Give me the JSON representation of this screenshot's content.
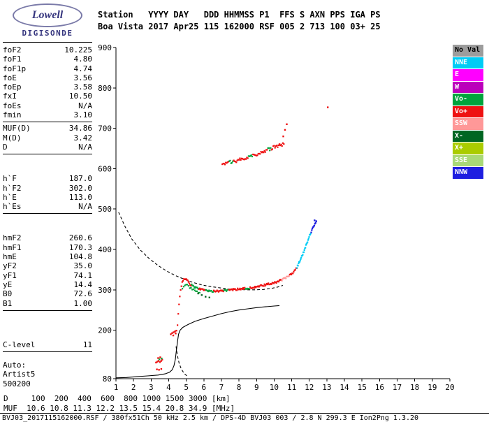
{
  "logo": {
    "line1": "Lowell",
    "line2": "DIGISONDE"
  },
  "header": {
    "row1": "Station   YYYY DAY   DDD HHMMSS P1  FFS S AXN PPS IGA PS",
    "row2": "Boa Vista 2017 Apr25 115 162000 RSF 005 2 713 100 03+ 25"
  },
  "parameters": {
    "groups": [
      {
        "rows": [
          {
            "label": "foF2",
            "value": "10.225"
          },
          {
            "label": "foF1",
            "value": "4.80"
          },
          {
            "label": "foF1p",
            "value": "4.74"
          },
          {
            "label": "foE",
            "value": "3.56"
          },
          {
            "label": "foEp",
            "value": "3.58"
          },
          {
            "label": "fxI",
            "value": "10.50"
          },
          {
            "label": "foEs",
            "value": "N/A"
          },
          {
            "label": "fmin",
            "value": "3.10"
          }
        ]
      },
      {
        "rows": [
          {
            "label": "MUF(D)",
            "value": "34.86"
          },
          {
            "label": "M(D)",
            "value": "3.42"
          },
          {
            "label": "D",
            "value": "N/A"
          }
        ]
      },
      {
        "rows": [
          {
            "label": "h`F",
            "value": "187.0"
          },
          {
            "label": "h`F2",
            "value": "302.0"
          },
          {
            "label": "h`E",
            "value": "113.0"
          },
          {
            "label": "h`Es",
            "value": "N/A"
          }
        ]
      },
      {
        "rows": [
          {
            "label": "hmF2",
            "value": "260.6"
          },
          {
            "label": "hmF1",
            "value": "170.3"
          },
          {
            "label": "hmE",
            "value": "104.8"
          },
          {
            "label": "yF2",
            "value": "35.0"
          },
          {
            "label": "yF1",
            "value": "74.1"
          },
          {
            "label": "yE",
            "value": "14.4"
          },
          {
            "label": "B0",
            "value": "72.6"
          },
          {
            "label": "B1",
            "value": "1.00"
          }
        ]
      },
      {
        "rows": [
          {
            "label": "C-level",
            "value": "11"
          }
        ]
      },
      {
        "rows": [
          {
            "label": "Auto:",
            "value": ""
          },
          {
            "label": "Artist5",
            "value": ""
          },
          {
            "label": "500200",
            "value": ""
          }
        ]
      }
    ]
  },
  "legend": {
    "items": [
      {
        "label": "No Val",
        "color_key": "NoVal",
        "text_color": "#000000"
      },
      {
        "label": "NNE",
        "color_key": "NNE",
        "text_color": "#ffffff"
      },
      {
        "label": "E",
        "color_key": "E",
        "text_color": "#ffffff"
      },
      {
        "label": "W",
        "color_key": "W",
        "text_color": "#ffffff"
      },
      {
        "label": "Vo-",
        "color_key": "Vo-",
        "text_color": "#ffffff"
      },
      {
        "label": "Vo+",
        "color_key": "Vo+",
        "text_color": "#ffffff"
      },
      {
        "label": "SSW",
        "color_key": "SSW",
        "text_color": "#ffffff"
      },
      {
        "label": "X-",
        "color_key": "X-",
        "text_color": "#ffffff"
      },
      {
        "label": "X+",
        "color_key": "X+",
        "text_color": "#ffffff"
      },
      {
        "label": "SSE",
        "color_key": "SSE",
        "text_color": "#ffffff"
      },
      {
        "label": "NNW",
        "color_key": "NNW",
        "text_color": "#ffffff"
      }
    ]
  },
  "chart_data": {
    "type": "scatter",
    "title": "",
    "xlim": [
      1,
      20
    ],
    "ylim": [
      80,
      900
    ],
    "x_ticks": [
      1,
      2,
      3,
      4,
      5,
      6,
      7,
      8,
      9,
      10,
      11,
      12,
      13,
      14,
      15,
      16,
      17,
      18,
      19,
      20
    ],
    "y_ticks": [
      80,
      200,
      300,
      400,
      500,
      600,
      700,
      800,
      900
    ],
    "grid": false,
    "legend_position": "right",
    "colors": {
      "NoVal": "#9c9c9c",
      "NNE": "#00ccf5",
      "E": "#ff00ff",
      "W": "#bb00bb",
      "Vo-": "#00a33c",
      "Vo+": "#ee1111",
      "SSW": "#ff9898",
      "X-": "#006622",
      "X+": "#aacc00",
      "SSE": "#a9d977",
      "NNW": "#1e1ee0"
    },
    "traces": [
      {
        "name": "F-trace-main",
        "step": 0.045,
        "jitter": 2.5,
        "control": [
          [
            4.5,
            212
          ],
          [
            4.55,
            242
          ],
          [
            4.6,
            268
          ],
          [
            4.65,
            290
          ],
          [
            4.7,
            305
          ],
          [
            4.75,
            315
          ],
          [
            4.8,
            322
          ],
          [
            4.9,
            327
          ],
          [
            5.0,
            325
          ],
          [
            5.1,
            320
          ],
          [
            5.25,
            313
          ],
          [
            5.45,
            307
          ],
          [
            5.7,
            302
          ],
          [
            6.0,
            299
          ],
          [
            6.4,
            297
          ],
          [
            6.8,
            297
          ],
          [
            7.2,
            298
          ],
          [
            7.6,
            300
          ],
          [
            8.0,
            302
          ],
          [
            8.4,
            304
          ],
          [
            8.8,
            306
          ],
          [
            9.2,
            309
          ],
          [
            9.6,
            313
          ],
          [
            10.0,
            317
          ],
          [
            10.3,
            322
          ],
          [
            10.6,
            328
          ],
          [
            10.9,
            336
          ],
          [
            11.1,
            344
          ],
          [
            11.3,
            354
          ]
        ],
        "segments": [
          {
            "from": 4.5,
            "to": 5.3,
            "color": "Vo+"
          },
          {
            "from": 5.3,
            "to": 5.7,
            "color": "Vo-"
          },
          {
            "from": 5.7,
            "to": 6.1,
            "color": "Vo+"
          },
          {
            "from": 6.1,
            "to": 6.55,
            "color": "Vo-"
          },
          {
            "from": 6.55,
            "to": 7.15,
            "color": "Vo+"
          },
          {
            "from": 7.15,
            "to": 7.4,
            "color": "Vo-"
          },
          {
            "from": 7.4,
            "to": 8.35,
            "color": "Vo+"
          },
          {
            "from": 8.35,
            "to": 8.6,
            "color": "Vo-"
          },
          {
            "from": 8.6,
            "to": 10.4,
            "color": "Vo+"
          },
          {
            "from": 10.4,
            "to": 10.85,
            "color": "SSW"
          },
          {
            "from": 10.85,
            "to": 11.35,
            "color": "Vo+"
          }
        ]
      },
      {
        "name": "F-trace-x-tail",
        "step": 0.03,
        "jitter": 2,
        "control": [
          [
            11.3,
            356
          ],
          [
            11.45,
            370
          ],
          [
            11.6,
            385
          ],
          [
            11.75,
            402
          ],
          [
            11.9,
            420
          ],
          [
            12.05,
            438
          ],
          [
            12.2,
            453
          ],
          [
            12.32,
            462
          ]
        ],
        "segments": [
          {
            "from": 11.3,
            "to": 12.1,
            "color": "NNE"
          },
          {
            "from": 12.1,
            "to": 12.35,
            "color": "NNW"
          }
        ]
      },
      {
        "name": "cusp-underside",
        "step": 0.07,
        "jitter": 2,
        "control": [
          [
            4.78,
            302
          ],
          [
            4.9,
            312
          ],
          [
            5.05,
            312
          ],
          [
            5.2,
            306
          ],
          [
            5.4,
            300
          ],
          [
            5.6,
            295
          ],
          [
            5.8,
            291
          ]
        ],
        "segments": [
          {
            "from": 4.78,
            "to": 5.85,
            "color": "Vo-"
          }
        ]
      },
      {
        "name": "second-hop-trace",
        "step": 0.05,
        "jitter": 4,
        "control": [
          [
            7.05,
            612
          ],
          [
            7.4,
            615
          ],
          [
            7.8,
            619
          ],
          [
            8.2,
            624
          ],
          [
            8.6,
            630
          ],
          [
            9.0,
            636
          ],
          [
            9.4,
            643
          ],
          [
            9.8,
            650
          ],
          [
            10.2,
            656
          ],
          [
            10.55,
            661
          ]
        ],
        "segments": [
          {
            "from": 7.05,
            "to": 7.4,
            "color": "Vo+"
          },
          {
            "from": 7.4,
            "to": 7.65,
            "color": "Vo-"
          },
          {
            "from": 7.65,
            "to": 8.55,
            "color": "Vo+"
          },
          {
            "from": 8.55,
            "to": 8.8,
            "color": "Vo-"
          },
          {
            "from": 8.8,
            "to": 9.65,
            "color": "Vo+"
          },
          {
            "from": 9.65,
            "to": 9.85,
            "color": "Vo-"
          },
          {
            "from": 9.85,
            "to": 10.6,
            "color": "Vo+"
          }
        ]
      }
    ],
    "clusters": [
      {
        "name": "es-cluster",
        "color": "Vo+",
        "points": [
          [
            3.28,
            120
          ],
          [
            3.35,
            122
          ],
          [
            3.42,
            124
          ],
          [
            3.5,
            121
          ],
          [
            3.57,
            124
          ],
          [
            3.63,
            127
          ],
          [
            3.4,
            131
          ],
          [
            3.52,
            133
          ],
          [
            3.33,
            103
          ],
          [
            3.45,
            102
          ],
          [
            3.58,
            104
          ]
        ]
      },
      {
        "name": "es-cluster-green",
        "color": "Vo-",
        "points": [
          [
            3.47,
            128
          ],
          [
            3.6,
            130
          ]
        ]
      },
      {
        "name": "fmin-cluster",
        "color": "Vo+",
        "points": [
          [
            4.12,
            190
          ],
          [
            4.2,
            193
          ],
          [
            4.28,
            195
          ],
          [
            4.36,
            197
          ],
          [
            4.44,
            199
          ],
          [
            4.26,
            187
          ],
          [
            4.4,
            192
          ]
        ]
      },
      {
        "name": "stray-dark-green",
        "color": "X-",
        "points": [
          [
            5.68,
            291
          ],
          [
            5.88,
            287
          ],
          [
            6.1,
            283
          ],
          [
            6.32,
            281
          ]
        ]
      },
      {
        "name": "stray-specks",
        "color": "Vo+",
        "points": [
          [
            10.52,
            680
          ],
          [
            10.62,
            696
          ],
          [
            10.72,
            710
          ],
          [
            13.05,
            752
          ]
        ]
      },
      {
        "name": "tail-top-blue",
        "color": "NNW",
        "points": [
          [
            12.36,
            466
          ],
          [
            12.4,
            470
          ],
          [
            12.3,
            472
          ]
        ]
      }
    ],
    "lines": [
      {
        "name": "true-height-profile",
        "style": "solid",
        "color": "#000000",
        "points": [
          [
            1.0,
            82
          ],
          [
            1.6,
            83
          ],
          [
            2.2,
            85
          ],
          [
            2.8,
            87
          ],
          [
            3.4,
            89
          ],
          [
            3.8,
            92
          ],
          [
            4.05,
            96
          ],
          [
            4.2,
            102
          ],
          [
            4.3,
            112
          ],
          [
            4.38,
            128
          ],
          [
            4.44,
            150
          ],
          [
            4.5,
            172
          ],
          [
            4.56,
            190
          ],
          [
            4.65,
            200
          ],
          [
            4.8,
            207
          ],
          [
            5.1,
            214
          ],
          [
            5.5,
            222
          ],
          [
            6.0,
            229
          ],
          [
            6.5,
            235
          ],
          [
            7.0,
            241
          ],
          [
            7.5,
            246
          ],
          [
            8.0,
            250
          ],
          [
            8.5,
            253
          ],
          [
            9.0,
            256
          ],
          [
            9.5,
            258
          ],
          [
            10.0,
            260
          ],
          [
            10.3,
            261
          ]
        ]
      },
      {
        "name": "muf-transmission-curve",
        "style": "dashed",
        "color": "#000000",
        "points": [
          [
            1.15,
            492
          ],
          [
            1.5,
            458
          ],
          [
            1.9,
            426
          ],
          [
            2.4,
            398
          ],
          [
            2.9,
            377
          ],
          [
            3.4,
            360
          ],
          [
            3.9,
            346
          ],
          [
            4.4,
            335
          ],
          [
            4.9,
            326
          ],
          [
            5.4,
            318
          ],
          [
            5.9,
            312
          ],
          [
            6.4,
            308
          ],
          [
            6.9,
            305
          ],
          [
            7.4,
            302
          ],
          [
            7.9,
            301
          ],
          [
            8.4,
            300
          ],
          [
            8.9,
            300
          ],
          [
            9.4,
            301
          ],
          [
            9.9,
            304
          ],
          [
            10.2,
            307
          ],
          [
            10.5,
            311
          ]
        ]
      },
      {
        "name": "sub-fmin-extrapolation",
        "style": "dashed",
        "color": "#000000",
        "points": [
          [
            4.42,
            160
          ],
          [
            4.5,
            136
          ],
          [
            4.6,
            117
          ],
          [
            4.73,
            103
          ],
          [
            4.9,
            92
          ],
          [
            5.1,
            85
          ]
        ]
      }
    ]
  },
  "distance_table": {
    "row1": "D     100  200  400  600  800 1000 1500 3000 [km]",
    "row2": "MUF  10.6 10.8 11.3 12.2 13.5 15.4 20.8 34.9 [MHz]"
  },
  "status_bar": {
    "text": "BVJ03_2017115162000.RSF / 380fx51Ch 50 kHz 2.5 km / DPS-4D BVJ03 003 / 2.8 N 299.3 E Ion2Png 1.3.20"
  }
}
